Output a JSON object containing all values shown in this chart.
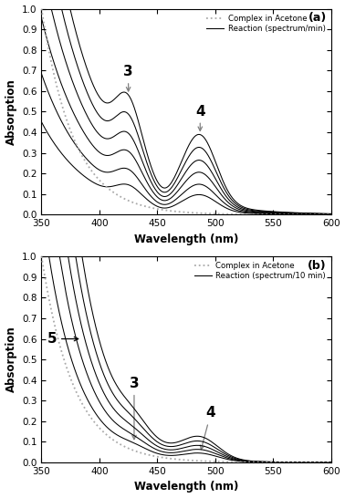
{
  "xlim": [
    350,
    600
  ],
  "ylim": [
    0.0,
    1.0
  ],
  "xlabel": "Wavelength (nm)",
  "ylabel": "Absorption",
  "panel_a_label": "(a)",
  "panel_b_label": "(b)",
  "legend_dotted": "Complex in Acetone",
  "legend_solid_a": "Reaction (spectrum/min)",
  "legend_solid_b": "Reaction (spectrum/10 min)",
  "background_color": "#ffffff",
  "dotted_color": "#aaaaaa",
  "solid_color": "#000000",
  "scales_a": [
    1.0,
    0.84,
    0.68,
    0.53,
    0.38,
    0.25
  ],
  "scales_b": [
    1.0,
    0.82,
    0.65,
    0.5,
    0.36
  ],
  "ann_3_wl_a": 425,
  "ann_4_wl_a": 487,
  "ann_3_wl_b": 430,
  "ann_4_wl_b": 487,
  "ann_5_wl_b": 385
}
